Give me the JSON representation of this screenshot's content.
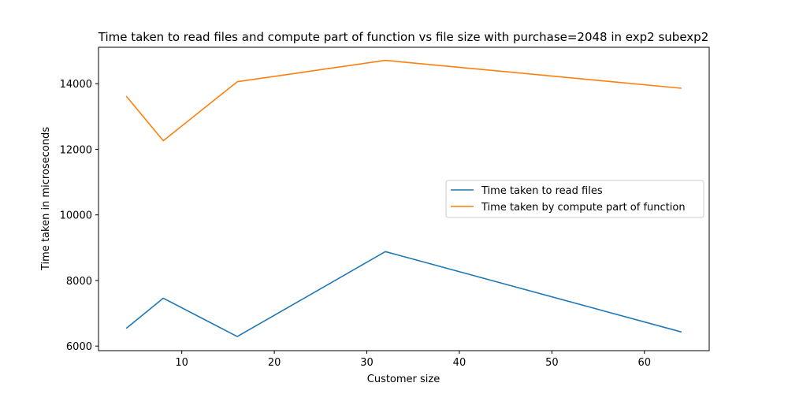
{
  "chart_data": {
    "type": "line",
    "title": "Time taken to read files and compute part of function vs file size with purchase=2048 in exp2 subexp2",
    "xlabel": "Customer size",
    "ylabel": "Time taken in microseconds",
    "x": [
      4,
      8,
      16,
      32,
      64
    ],
    "xlim": [
      1,
      67
    ],
    "ylim": [
      5860,
      15110
    ],
    "xticks": [
      10,
      20,
      30,
      40,
      50,
      60
    ],
    "yticks": [
      6000,
      8000,
      10000,
      12000,
      14000
    ],
    "grid": false,
    "legend_position": "center-right",
    "series": [
      {
        "name": "Time taken to read files",
        "color": "#1f77b4",
        "values": [
          6540,
          7460,
          6290,
          8880,
          6430
        ]
      },
      {
        "name": "Time taken by compute part of function",
        "color": "#ff7f0e",
        "values": [
          13620,
          12260,
          14060,
          14710,
          13860
        ]
      }
    ]
  }
}
